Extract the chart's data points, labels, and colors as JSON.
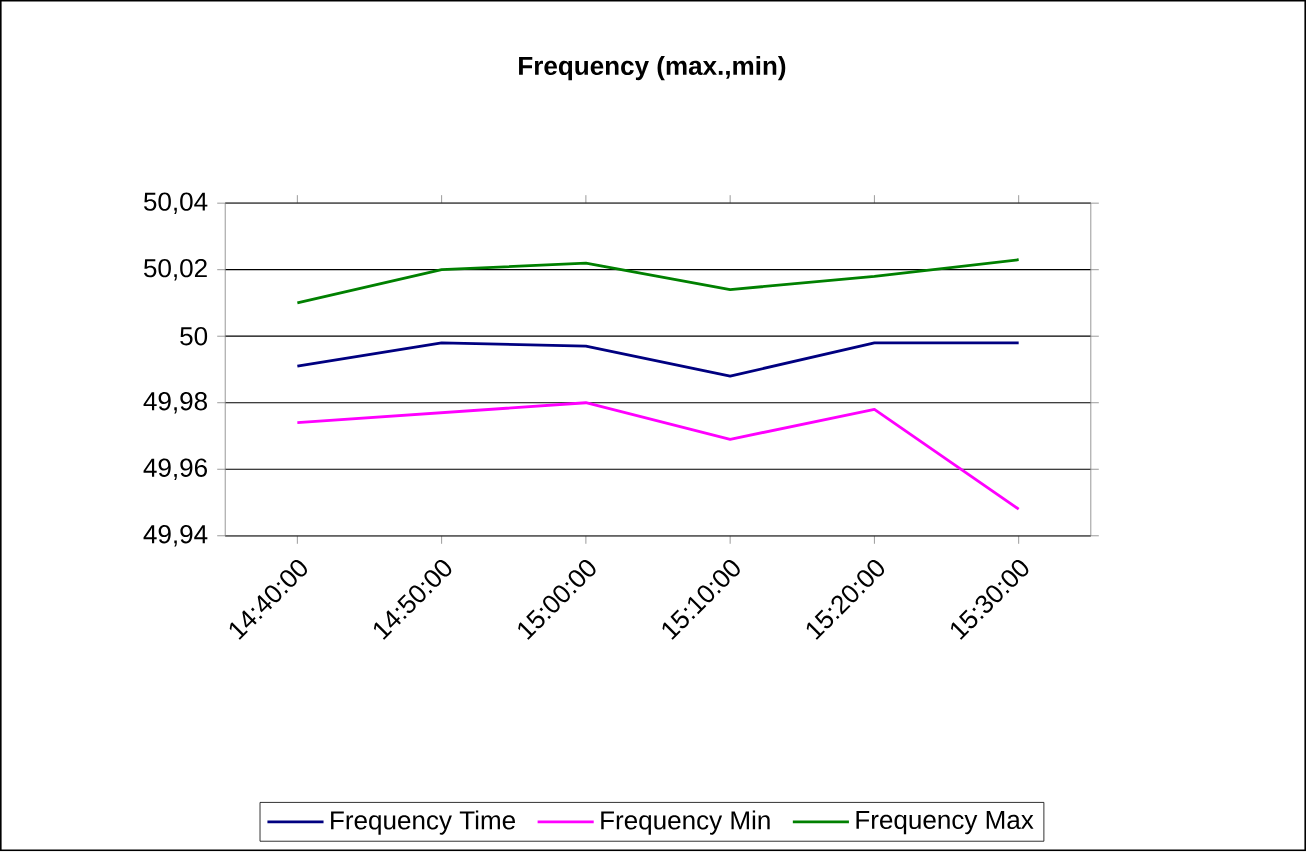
{
  "chart_data": {
    "type": "line",
    "title": "Frequency (max.,min)",
    "categories": [
      "14:40:00",
      "14:50:00",
      "15:00:00",
      "15:10:00",
      "15:20:00",
      "15:30:00"
    ],
    "series": [
      {
        "name": "Frequency Time",
        "color": "#000080",
        "values": [
          49.991,
          49.998,
          49.997,
          49.988,
          49.998,
          49.998
        ]
      },
      {
        "name": "Frequency Min",
        "color": "#ff00ff",
        "values": [
          49.974,
          49.977,
          49.98,
          49.969,
          49.978,
          49.948
        ]
      },
      {
        "name": "Frequency  Max",
        "color": "#008000",
        "values": [
          50.01,
          50.02,
          50.022,
          50.014,
          50.018,
          50.023
        ]
      }
    ],
    "ylim": [
      49.94,
      50.04
    ],
    "yticks": [
      {
        "value": 49.94,
        "label": "49,94"
      },
      {
        "value": 49.96,
        "label": "49,96"
      },
      {
        "value": 49.98,
        "label": "49,98"
      },
      {
        "value": 50,
        "label": "50"
      },
      {
        "value": 50.02,
        "label": "50,02"
      },
      {
        "value": 50.04,
        "label": "50,04"
      }
    ],
    "grid": "y",
    "legend": "bottom",
    "marker": "none",
    "line_style": "solid"
  }
}
